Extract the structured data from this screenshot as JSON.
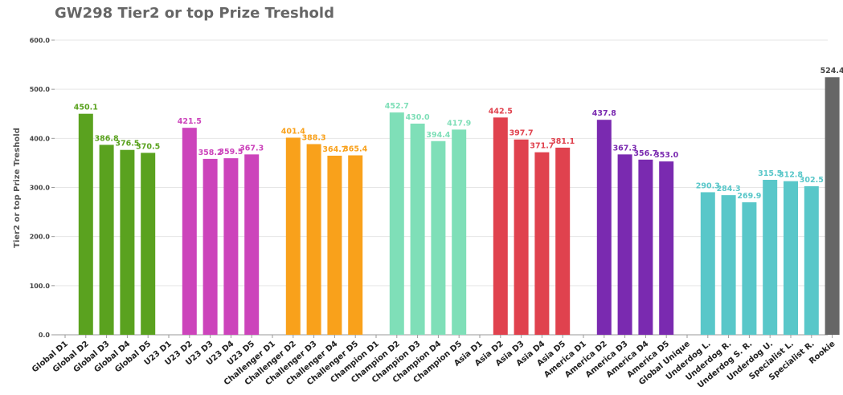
{
  "chart_data": {
    "type": "bar",
    "title": "GW298 Tier2 or top Prize Treshold",
    "ylabel": "Tier2 or top Prize Treshold",
    "ylim": [
      0,
      600
    ],
    "yticks": [
      0,
      100,
      200,
      300,
      400,
      500,
      600
    ],
    "ytick_labels": [
      "0.0",
      "100.0",
      "200.0",
      "300.0",
      "400.0",
      "500.0",
      "600.0"
    ],
    "grid": true,
    "categories": [
      "Global D1",
      "Global D2",
      "Global D3",
      "Global D4",
      "Global D5",
      "U23 D1",
      "U23 D2",
      "U23 D3",
      "U23 D4",
      "U23 D5",
      "Challenger D1",
      "Challenger D2",
      "Challenger D3",
      "Challenger D4",
      "Challenger D5",
      "Champion D1",
      "Champion D2",
      "Champion D3",
      "Champion D4",
      "Champion D5",
      "Asia D1",
      "Asia D2",
      "Asia D3",
      "Asia D4",
      "Asia D5",
      "America D1",
      "America D2",
      "America D3",
      "America D4",
      "America D5",
      "Global Unique",
      "Underdog L.",
      "Underdog R.",
      "Underdog S. R.",
      "Underdog U.",
      "Specialist L.",
      "Specialist R.",
      "Rookie"
    ],
    "values": [
      null,
      450.1,
      386.8,
      376.5,
      370.5,
      null,
      421.5,
      358.2,
      359.5,
      367.3,
      null,
      401.4,
      388.3,
      364.7,
      365.4,
      null,
      452.7,
      430.0,
      394.4,
      417.9,
      null,
      442.5,
      397.7,
      371.7,
      381.1,
      null,
      437.8,
      367.3,
      356.7,
      353.0,
      null,
      290.3,
      284.3,
      269.9,
      315.5,
      312.8,
      302.5,
      524.4
    ],
    "value_labels": [
      "",
      "450.1",
      "386.8",
      "376.5",
      "370.5",
      "",
      "421.5",
      "358.2",
      "359.5",
      "367.3",
      "",
      "401.4",
      "388.3",
      "364.7",
      "365.4",
      "",
      "452.7",
      "430.0",
      "394.4",
      "417.9",
      "",
      "442.5",
      "397.7",
      "371.7",
      "381.1",
      "",
      "437.8",
      "367.3",
      "356.7",
      "353.0",
      "",
      "290.3",
      "284.3",
      "269.9",
      "315.5",
      "312.8",
      "302.5",
      "524.4"
    ],
    "colors": [
      "#5aa21f",
      "#5aa21f",
      "#5aa21f",
      "#5aa21f",
      "#5aa21f",
      "#cc44bb",
      "#cc44bb",
      "#cc44bb",
      "#cc44bb",
      "#cc44bb",
      "#f9a11b",
      "#f9a11b",
      "#f9a11b",
      "#f9a11b",
      "#f9a11b",
      "#7fdfb8",
      "#7fdfb8",
      "#7fdfb8",
      "#7fdfb8",
      "#7fdfb8",
      "#e0424e",
      "#e0424e",
      "#e0424e",
      "#e0424e",
      "#e0424e",
      "#7a2ab0",
      "#7a2ab0",
      "#7a2ab0",
      "#7a2ab0",
      "#7a2ab0",
      "#59c7c9",
      "#59c7c9",
      "#59c7c9",
      "#59c7c9",
      "#59c7c9",
      "#59c7c9",
      "#59c7c9",
      "#666666"
    ]
  }
}
